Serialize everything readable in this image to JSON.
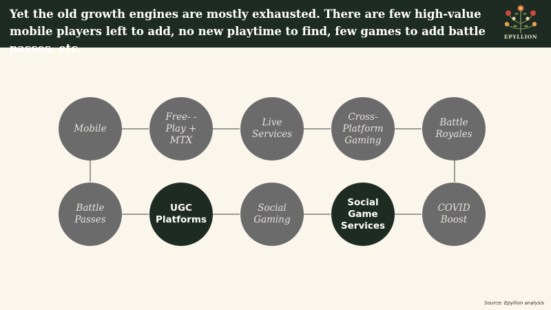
{
  "header": {
    "title": "Yet the old growth engines are mostly exhausted. There are few high-value mobile players left to add, no new playtime to find, few games to add battle passes, etc.",
    "logo_text": "EPYLLION"
  },
  "diagram": {
    "nodes": [
      {
        "label": "Mobile",
        "highlight": false
      },
      {
        "label": "Free-    -\nPlay +\nMTX",
        "highlight": false
      },
      {
        "label": "Live\nServices",
        "highlight": false
      },
      {
        "label": "Cross-\nPlatform\nGaming",
        "highlight": false
      },
      {
        "label": "Battle\nRoyales",
        "highlight": false
      },
      {
        "label": "Battle\nPasses",
        "highlight": false
      },
      {
        "label": "UGC\nPlatforms",
        "highlight": true
      },
      {
        "label": "Social\nGaming",
        "highlight": false
      },
      {
        "label": "Social\nGame\nServices",
        "highlight": true
      },
      {
        "label": "COVID\nBoost",
        "highlight": false
      }
    ],
    "colors": {
      "node": "#6b6b6b",
      "highlight": "#1d2b22",
      "background": "#fbf6ec",
      "header": "#1d2b22"
    }
  },
  "footer": {
    "source": "Source: Epyllion analysis"
  }
}
